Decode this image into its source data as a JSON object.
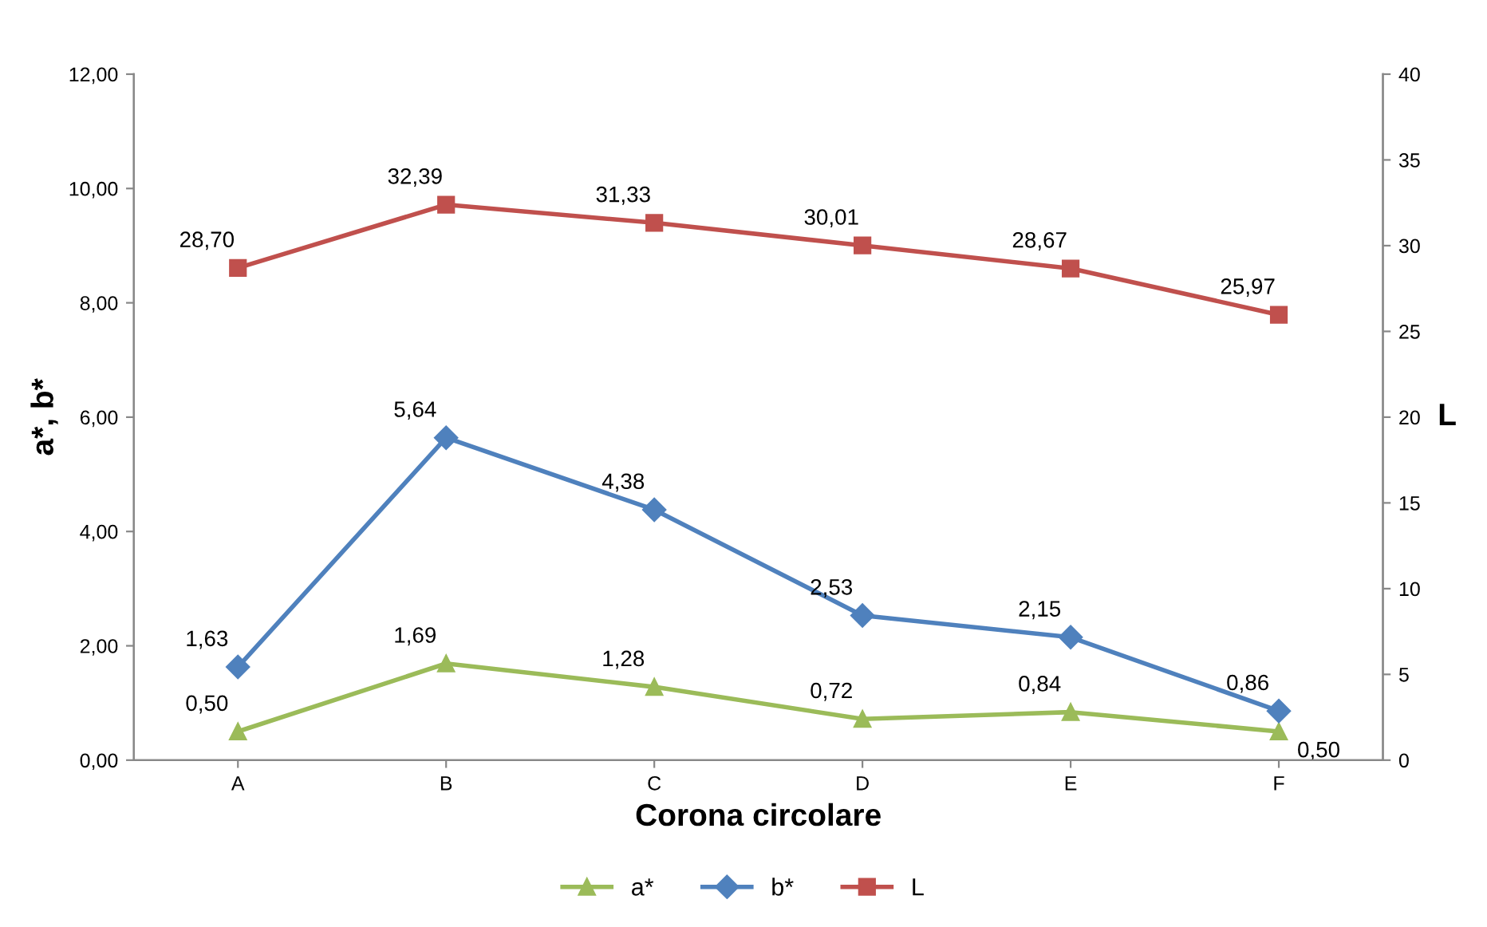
{
  "chart_data": {
    "type": "line",
    "xlabel": "Corona circolare",
    "ylabel": "a*, b*",
    "y2label": "L",
    "categories": [
      "A",
      "B",
      "C",
      "D",
      "E",
      "F"
    ],
    "series": [
      {
        "name": "a*",
        "color": "#9bbb59",
        "marker": "triangle",
        "values": [
          0.5,
          1.69,
          1.28,
          0.72,
          0.84,
          0.5
        ],
        "value_labels": [
          "0,50",
          "1,69",
          "1,28",
          "0,72",
          "0,84",
          "0,50"
        ]
      },
      {
        "name": "b*",
        "color": "#4f81bd",
        "marker": "diamond",
        "values": [
          1.63,
          5.64,
          4.38,
          2.53,
          2.15,
          0.86
        ],
        "value_labels": [
          "1,63",
          "5,64",
          "4,38",
          "2,53",
          "2,15",
          "0,86"
        ]
      },
      {
        "name": "L",
        "color": "#c0504d",
        "marker": "square",
        "axis": "y2",
        "values": [
          28.7,
          32.39,
          31.33,
          30.01,
          28.67,
          25.97
        ],
        "value_labels": [
          "28,70",
          "32,39",
          "31,33",
          "30,01",
          "28,67",
          "25,97"
        ]
      }
    ],
    "ylim": [
      0,
      12
    ],
    "yticks": [
      {
        "value": 0,
        "label": "0,00"
      },
      {
        "value": 2,
        "label": "2,00"
      },
      {
        "value": 4,
        "label": "4,00"
      },
      {
        "value": 6,
        "label": "6,00"
      },
      {
        "value": 8,
        "label": "8,00"
      },
      {
        "value": 10,
        "label": "10,00"
      },
      {
        "value": 12,
        "label": "12,00"
      }
    ],
    "y2lim": [
      0,
      40
    ],
    "y2ticks": [
      0,
      5,
      10,
      15,
      20,
      25,
      30,
      35,
      40
    ],
    "legend": "bottom",
    "grid": false,
    "line_style": "solid"
  }
}
